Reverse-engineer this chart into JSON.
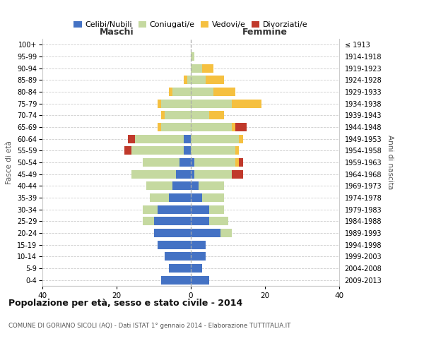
{
  "age_groups": [
    "0-4",
    "5-9",
    "10-14",
    "15-19",
    "20-24",
    "25-29",
    "30-34",
    "35-39",
    "40-44",
    "45-49",
    "50-54",
    "55-59",
    "60-64",
    "65-69",
    "70-74",
    "75-79",
    "80-84",
    "85-89",
    "90-94",
    "95-99",
    "100+"
  ],
  "birth_years": [
    "2009-2013",
    "2004-2008",
    "1999-2003",
    "1994-1998",
    "1989-1993",
    "1984-1988",
    "1979-1983",
    "1974-1978",
    "1969-1973",
    "1964-1968",
    "1959-1963",
    "1954-1958",
    "1949-1953",
    "1944-1948",
    "1939-1943",
    "1934-1938",
    "1929-1933",
    "1924-1928",
    "1919-1923",
    "1914-1918",
    "≤ 1913"
  ],
  "colors": {
    "celibi": "#4472c4",
    "coniugati": "#c5d9a0",
    "vedovi": "#f5c040",
    "divorziati": "#c0392b"
  },
  "maschi": {
    "celibi": [
      8,
      6,
      7,
      9,
      10,
      10,
      9,
      6,
      5,
      4,
      3,
      2,
      2,
      0,
      0,
      0,
      0,
      0,
      0,
      0,
      0
    ],
    "coniugati": [
      0,
      0,
      0,
      0,
      0,
      3,
      4,
      5,
      7,
      12,
      10,
      14,
      13,
      8,
      7,
      8,
      5,
      1,
      0,
      0,
      0
    ],
    "vedovi": [
      0,
      0,
      0,
      0,
      0,
      0,
      0,
      0,
      0,
      0,
      0,
      0,
      0,
      1,
      1,
      1,
      1,
      1,
      0,
      0,
      0
    ],
    "divorziati": [
      0,
      0,
      0,
      0,
      0,
      0,
      0,
      0,
      0,
      0,
      0,
      2,
      2,
      0,
      0,
      0,
      0,
      0,
      0,
      0,
      0
    ]
  },
  "femmine": {
    "celibi": [
      5,
      3,
      4,
      4,
      8,
      5,
      5,
      3,
      2,
      1,
      1,
      0,
      0,
      0,
      0,
      0,
      0,
      0,
      0,
      0,
      0
    ],
    "coniugati": [
      0,
      0,
      0,
      0,
      3,
      5,
      4,
      6,
      7,
      10,
      11,
      12,
      13,
      11,
      5,
      11,
      6,
      4,
      3,
      1,
      0
    ],
    "vedovi": [
      0,
      0,
      0,
      0,
      0,
      0,
      0,
      0,
      0,
      0,
      1,
      1,
      1,
      1,
      4,
      8,
      6,
      5,
      3,
      0,
      0
    ],
    "divorziati": [
      0,
      0,
      0,
      0,
      0,
      0,
      0,
      0,
      0,
      3,
      1,
      0,
      0,
      3,
      0,
      0,
      0,
      0,
      0,
      0,
      0
    ]
  },
  "title": "Popolazione per età, sesso e stato civile - 2014",
  "subtitle": "COMUNE DI GORIANO SICOLI (AQ) - Dati ISTAT 1° gennaio 2014 - Elaborazione TUTTITALIA.IT",
  "xlabel_left": "Maschi",
  "xlabel_right": "Femmine",
  "ylabel_left": "Fasce di età",
  "ylabel_right": "Anni di nascita",
  "xlim": 40,
  "legend_labels": [
    "Celibi/Nubili",
    "Coniugati/e",
    "Vedovi/e",
    "Divorziati/e"
  ]
}
